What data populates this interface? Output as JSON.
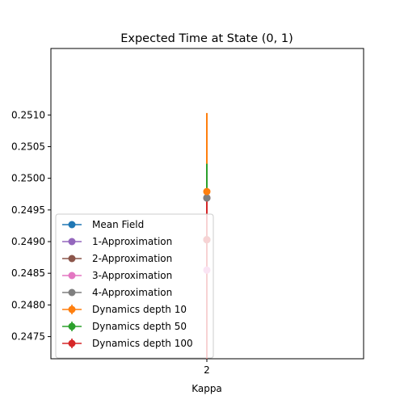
{
  "chart_data": {
    "type": "scatter",
    "title": "Expected Time at State (0, 1)",
    "xlabel": "Kappa",
    "ylabel": "",
    "categories": [
      "2"
    ],
    "ylim": [
      0.24715,
      0.25205
    ],
    "yticks": [
      "0.2475",
      "0.2480",
      "0.2485",
      "0.2490",
      "0.2495",
      "0.2500",
      "0.2505",
      "0.2510"
    ],
    "legend_position": "lower left",
    "grid": false,
    "series": [
      {
        "name": "Mean Field",
        "color": "#1f77b4",
        "marker": "circle",
        "values": [
          0.24903
        ]
      },
      {
        "name": "1-Approximation",
        "color": "#9467bd",
        "marker": "circle",
        "values": [
          0.24969
        ]
      },
      {
        "name": "2-Approximation",
        "color": "#8c564b",
        "marker": "circle",
        "values": [
          0.24969
        ]
      },
      {
        "name": "3-Approximation",
        "color": "#e377c2",
        "marker": "circle",
        "values": [
          0.24855
        ]
      },
      {
        "name": "4-Approximation",
        "color": "#7f7f7f",
        "marker": "circle",
        "values": [
          0.24969
        ]
      },
      {
        "name": "Dynamics depth 10",
        "color": "#ff7f0e",
        "marker": "errorbar",
        "values": [
          0.24979
        ],
        "yerr_low": [
          0.24855
        ],
        "yerr_high": [
          0.25103
        ]
      },
      {
        "name": "Dynamics depth 50",
        "color": "#2ca02c",
        "marker": "errorbar",
        "values": [
          0.24903
        ],
        "yerr_low": [
          0.24784
        ],
        "yerr_high": [
          0.25023
        ]
      },
      {
        "name": "Dynamics depth 100",
        "color": "#d62728",
        "marker": "errorbar",
        "values": [
          0.24903
        ],
        "yerr_low": [
          0.24715
        ],
        "yerr_high": [
          0.24969
        ]
      }
    ]
  }
}
